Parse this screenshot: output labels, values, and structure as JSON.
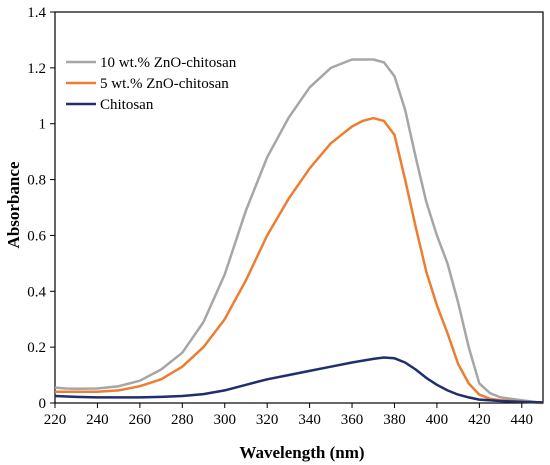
{
  "chart_data": {
    "type": "line",
    "title": "",
    "xlabel": "Wavelength (nm)",
    "ylabel": "Absorbance",
    "xlim": [
      220,
      450
    ],
    "ylim": [
      0,
      1.4
    ],
    "xticks": [
      "220",
      "240",
      "260",
      "280",
      "300",
      "320",
      "340",
      "360",
      "380",
      "400",
      "420",
      "440"
    ],
    "yticks": [
      "0",
      "0.2",
      "0.4",
      "0.6",
      "0.8",
      "1",
      "1.2",
      "1.4"
    ],
    "grid": false,
    "legend_position": "top-left",
    "series": [
      {
        "name": "10 wt.% ZnO-chitosan",
        "color": "#a6a6a6",
        "x": [
          220,
          225,
          230,
          240,
          250,
          260,
          270,
          280,
          290,
          300,
          310,
          320,
          330,
          340,
          350,
          360,
          370,
          375,
          380,
          385,
          390,
          395,
          400,
          405,
          410,
          415,
          420,
          425,
          430,
          440,
          450
        ],
        "y": [
          0.055,
          0.052,
          0.051,
          0.052,
          0.06,
          0.08,
          0.12,
          0.18,
          0.29,
          0.46,
          0.69,
          0.88,
          1.02,
          1.13,
          1.2,
          1.23,
          1.23,
          1.22,
          1.17,
          1.05,
          0.88,
          0.72,
          0.6,
          0.5,
          0.36,
          0.2,
          0.07,
          0.035,
          0.02,
          0.01,
          0.0
        ]
      },
      {
        "name": "5 wt.% ZnO-chitosan",
        "color": "#ed7d31",
        "x": [
          220,
          225,
          230,
          240,
          250,
          260,
          270,
          280,
          290,
          300,
          310,
          320,
          330,
          340,
          350,
          360,
          365,
          370,
          375,
          380,
          385,
          390,
          395,
          400,
          405,
          410,
          415,
          420,
          425,
          430,
          440,
          450
        ],
        "y": [
          0.04,
          0.04,
          0.04,
          0.04,
          0.045,
          0.06,
          0.085,
          0.13,
          0.2,
          0.3,
          0.44,
          0.6,
          0.73,
          0.84,
          0.93,
          0.99,
          1.01,
          1.02,
          1.01,
          0.96,
          0.8,
          0.63,
          0.47,
          0.35,
          0.25,
          0.14,
          0.07,
          0.03,
          0.015,
          0.01,
          0.005,
          0.0
        ]
      },
      {
        "name": "Chitosan",
        "color": "#1f2f6e",
        "x": [
          220,
          230,
          240,
          250,
          260,
          270,
          280,
          290,
          300,
          310,
          320,
          330,
          340,
          350,
          360,
          370,
          375,
          380,
          385,
          390,
          395,
          400,
          405,
          410,
          415,
          420,
          430,
          440,
          450
        ],
        "y": [
          0.025,
          0.022,
          0.02,
          0.02,
          0.02,
          0.022,
          0.025,
          0.032,
          0.045,
          0.065,
          0.085,
          0.1,
          0.115,
          0.13,
          0.145,
          0.158,
          0.163,
          0.16,
          0.145,
          0.12,
          0.09,
          0.065,
          0.045,
          0.03,
          0.02,
          0.012,
          0.007,
          0.004,
          0.002
        ]
      }
    ]
  }
}
